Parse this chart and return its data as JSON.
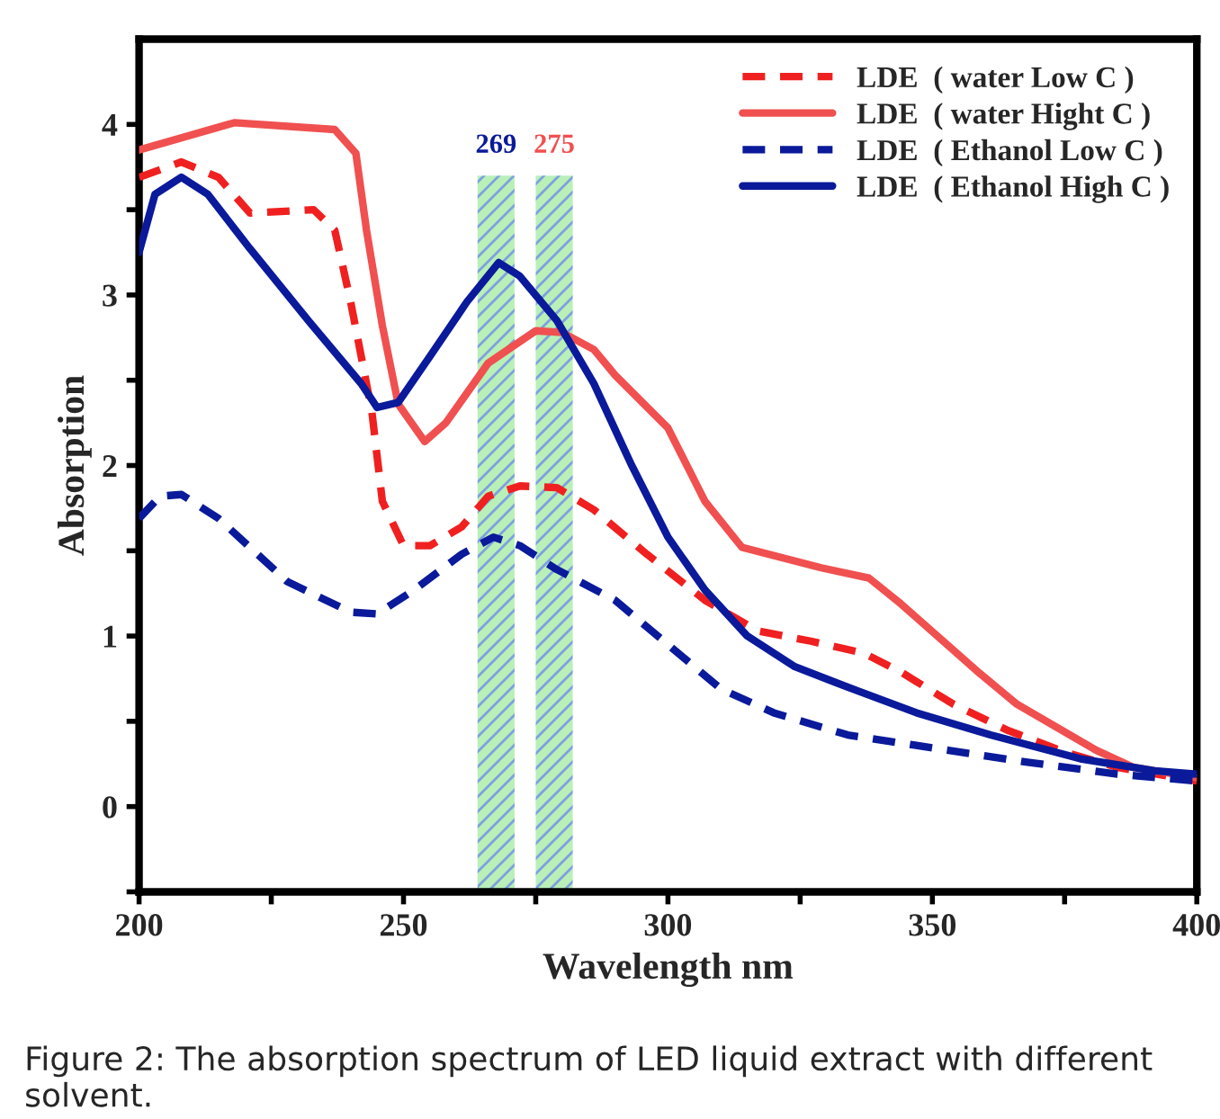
{
  "chart_data": {
    "type": "line",
    "xlabel": "Wavelength nm",
    "ylabel": "Absorption",
    "xlim": [
      200,
      400
    ],
    "ylim": [
      -0.5,
      4.5
    ],
    "xticks": [
      200,
      {
        "value": 225,
        "label": null
      },
      250,
      {
        "value": 275,
        "label": null
      },
      300,
      {
        "value": 325,
        "label": null
      },
      350,
      {
        "value": 375,
        "label": null
      },
      400
    ],
    "yticks": [
      {
        "value": -0.5,
        "label": null
      },
      0,
      {
        "value": 0.5,
        "label": null
      },
      1,
      {
        "value": 1.5,
        "label": null
      },
      2,
      {
        "value": 2.5,
        "label": null
      },
      3,
      {
        "value": 3.5,
        "label": null
      },
      4
    ],
    "grid": false,
    "legend": "top right",
    "bands": [
      {
        "axis": "x",
        "from": 264,
        "to": 271,
        "label": "269",
        "color": "#b8f0b8"
      },
      {
        "axis": "x",
        "from": 275,
        "to": 282,
        "label": "275",
        "color": "#b8f0b8"
      }
    ],
    "annotations": [
      "Figure 2: The absorption spectrum of LED liquid extract with different solvent."
    ],
    "series": [
      {
        "name": "LDE  ( water Low C )",
        "color": "#f02020",
        "line_style": "dashed",
        "x": [
          200,
          208,
          215,
          221,
          233,
          237,
          240,
          244,
          246,
          250,
          255,
          261,
          266,
          272,
          279,
          286,
          296,
          307,
          317,
          327,
          337,
          344,
          354,
          364,
          375,
          385,
          400
        ],
        "values": [
          3.69,
          3.78,
          3.69,
          3.48,
          3.5,
          3.38,
          2.96,
          2.32,
          1.79,
          1.53,
          1.53,
          1.64,
          1.82,
          1.88,
          1.87,
          1.74,
          1.48,
          1.21,
          1.03,
          0.97,
          0.9,
          0.79,
          0.6,
          0.45,
          0.32,
          0.23,
          0.15
        ]
      },
      {
        "name": "LDE  ( water Hight C )",
        "color": "#f05050",
        "line_style": "solid",
        "x": [
          200,
          218,
          237,
          241,
          243,
          246,
          249,
          254,
          258,
          266,
          275,
          280,
          286,
          290,
          300,
          307,
          314,
          329,
          338,
          344,
          359,
          366,
          381,
          388,
          400
        ],
        "values": [
          3.85,
          4.01,
          3.97,
          3.83,
          3.38,
          2.82,
          2.36,
          2.14,
          2.25,
          2.6,
          2.79,
          2.78,
          2.68,
          2.53,
          2.22,
          1.79,
          1.52,
          1.4,
          1.34,
          1.19,
          0.78,
          0.6,
          0.33,
          0.23,
          0.17
        ]
      },
      {
        "name": "LDE  ( Ethanol Low C )",
        "color": "#0a1a9a",
        "line_style": "dashed",
        "x": [
          200,
          204,
          208,
          215,
          228,
          240,
          245,
          252,
          261,
          267,
          272,
          279,
          290,
          300,
          310,
          320,
          334,
          351,
          368,
          385,
          400
        ],
        "values": [
          1.69,
          1.82,
          1.83,
          1.69,
          1.32,
          1.14,
          1.13,
          1.27,
          1.48,
          1.58,
          1.53,
          1.39,
          1.21,
          0.95,
          0.69,
          0.55,
          0.42,
          0.34,
          0.26,
          0.19,
          0.15
        ]
      },
      {
        "name": "LDE  ( Ethanol High C )",
        "color": "#0a1a9a",
        "line_style": "solid",
        "x": [
          200,
          203,
          208,
          213,
          221,
          232,
          242,
          245,
          249,
          255,
          262,
          268,
          272,
          279,
          286,
          293,
          300,
          307,
          315,
          324,
          334,
          347,
          361,
          378,
          392,
          400
        ],
        "values": [
          3.25,
          3.59,
          3.69,
          3.59,
          3.27,
          2.85,
          2.48,
          2.34,
          2.37,
          2.64,
          2.96,
          3.19,
          3.11,
          2.85,
          2.48,
          2.01,
          1.58,
          1.27,
          1.0,
          0.82,
          0.7,
          0.55,
          0.42,
          0.28,
          0.21,
          0.19
        ]
      }
    ]
  }
}
